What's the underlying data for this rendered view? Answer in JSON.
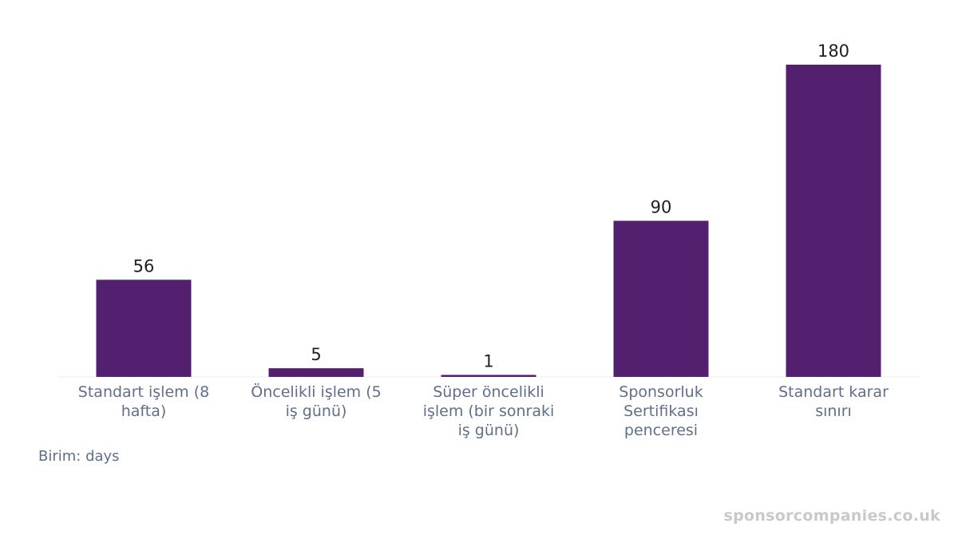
{
  "chart_data": {
    "type": "bar",
    "categories": [
      [
        "Standart işlem (8",
        "hafta)"
      ],
      [
        "Öncelikli işlem (5",
        "iş günü)"
      ],
      [
        "Süper öncelikli",
        "işlem (bir sonraki",
        "iş günü)"
      ],
      [
        "Sponsorluk",
        "Sertifikası",
        "penceresi"
      ],
      [
        "Standart karar",
        "sınırı"
      ]
    ],
    "values": [
      56,
      5,
      1,
      90,
      180
    ],
    "data_labels": [
      "56",
      "5",
      "1",
      "90",
      "180"
    ],
    "ylim": [
      0,
      180
    ],
    "grid": false,
    "bar_color": "#52206f",
    "unit_label": "Birim: days"
  },
  "watermark": "sponsorcompanies.co.uk",
  "colors": {
    "tick_label": "#5f6f8a",
    "value_label": "#1f1f1f",
    "baseline": "#ececec"
  }
}
